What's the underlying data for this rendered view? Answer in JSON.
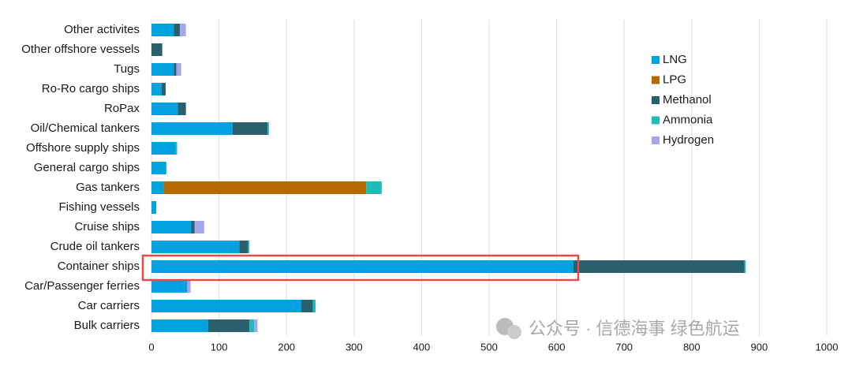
{
  "chart_data": {
    "type": "stacked-barh",
    "categories": [
      "Other activites",
      "Other offshore vessels",
      "Tugs",
      "Ro-Ro cargo ships",
      "RoPax",
      "Oil/Chemical tankers",
      "Offshore supply ships",
      "General cargo ships",
      "Gas tankers",
      "Fishing vessels",
      "Cruise ships",
      "Crude oil tankers",
      "Container ships",
      "Car/Passenger ferries",
      "Car carriers",
      "Bulk carriers"
    ],
    "series": [
      {
        "name": "LNG",
        "color": "#00a3e0",
        "values": [
          33,
          0,
          33,
          15,
          39,
          120,
          36,
          22,
          18,
          7,
          59,
          130,
          625,
          53,
          222,
          84
        ]
      },
      {
        "name": "LPG",
        "color": "#b46a00",
        "values": [
          0,
          0,
          0,
          0,
          0,
          0,
          0,
          0,
          300,
          0,
          0,
          0,
          0,
          0,
          0,
          0
        ]
      },
      {
        "name": "Methanol",
        "color": "#2a5f6e",
        "values": [
          9,
          16,
          4,
          6,
          12,
          52,
          0,
          0,
          0,
          0,
          5,
          13,
          253,
          0,
          17,
          61
        ]
      },
      {
        "name": "Ammonia",
        "color": "#1ebcb8",
        "values": [
          0,
          0,
          0,
          0,
          0,
          2,
          2,
          0,
          23,
          0,
          0,
          2,
          2,
          0,
          4,
          7
        ]
      },
      {
        "name": "Hydrogen",
        "color": "#a4a8e8",
        "values": [
          9,
          0,
          7,
          0,
          0,
          0,
          0,
          0,
          0,
          0,
          14,
          0,
          0,
          5,
          0,
          5
        ]
      }
    ],
    "xlim": [
      0,
      1000
    ],
    "xticks": [
      0,
      100,
      200,
      300,
      400,
      500,
      600,
      700,
      800,
      900,
      1000
    ],
    "grid": true
  },
  "watermark": "公众号 · 信德海事 绿色航运"
}
